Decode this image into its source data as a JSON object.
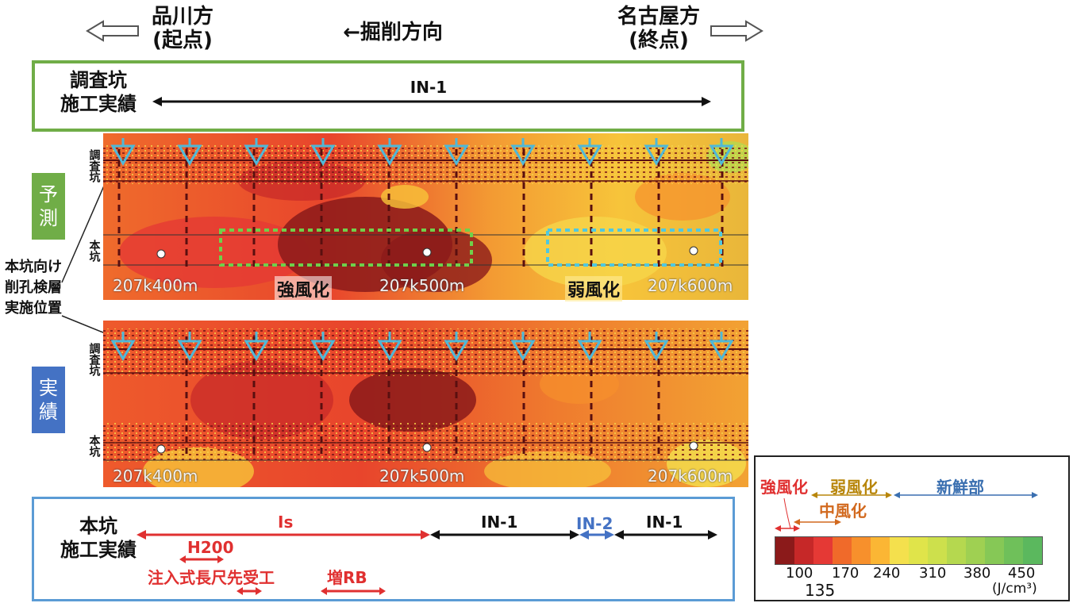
{
  "header": {
    "left_label_1": "品川方",
    "left_label_2": "(起点)",
    "center_label": "←掘削方向",
    "right_label_1": "名古屋方",
    "right_label_2": "(終点)"
  },
  "survey_box": {
    "label_1": "調査坑",
    "label_2": "施工実績",
    "section": "IN-1"
  },
  "side_note": {
    "line_1": "本坑向け",
    "line_2": "削孔検層",
    "line_3": "実施位置"
  },
  "panel_pred": {
    "tag_1": "予",
    "tag_2": "測",
    "tag_color": "#70ad47",
    "top_vlabel": "調査坑",
    "bottom_vlabel": "本坑",
    "markers": [
      "207k400m",
      "207k500m",
      "207k600m"
    ],
    "zone_strong": "強風化",
    "zone_weak": "弱風化"
  },
  "panel_actual": {
    "tag_1": "実",
    "tag_2": "績",
    "tag_color": "#4472c4",
    "top_vlabel": "調査坑",
    "bottom_vlabel": "本坑",
    "markers": [
      "207k400m",
      "207k500m",
      "207k600m"
    ]
  },
  "main_box": {
    "label_1": "本坑",
    "label_2": "施工実績",
    "seg_is": "Is",
    "seg_in1_a": "IN-1",
    "seg_in2": "IN-2",
    "seg_in1_b": "IN-1",
    "sub_h200": "H200",
    "sub_inject": "注入式長尺先受工",
    "sub_rb": "増RB"
  },
  "legend": {
    "strong": "強風化",
    "weak": "弱風化",
    "fresh": "新鮮部",
    "medium": "中風化",
    "ticks": [
      "100",
      "170",
      "240",
      "310",
      "380",
      "450"
    ],
    "tick_135": "135",
    "unit": "(J/cm³)",
    "colors": [
      "#8b1a1a",
      "#c62828",
      "#e53935",
      "#f06a2a",
      "#f7902c",
      "#fbb634",
      "#f4e04d",
      "#e0e44a",
      "#cde04c",
      "#b5d84f",
      "#9fd052",
      "#86c856",
      "#6fc05a",
      "#5bb85e"
    ]
  }
}
